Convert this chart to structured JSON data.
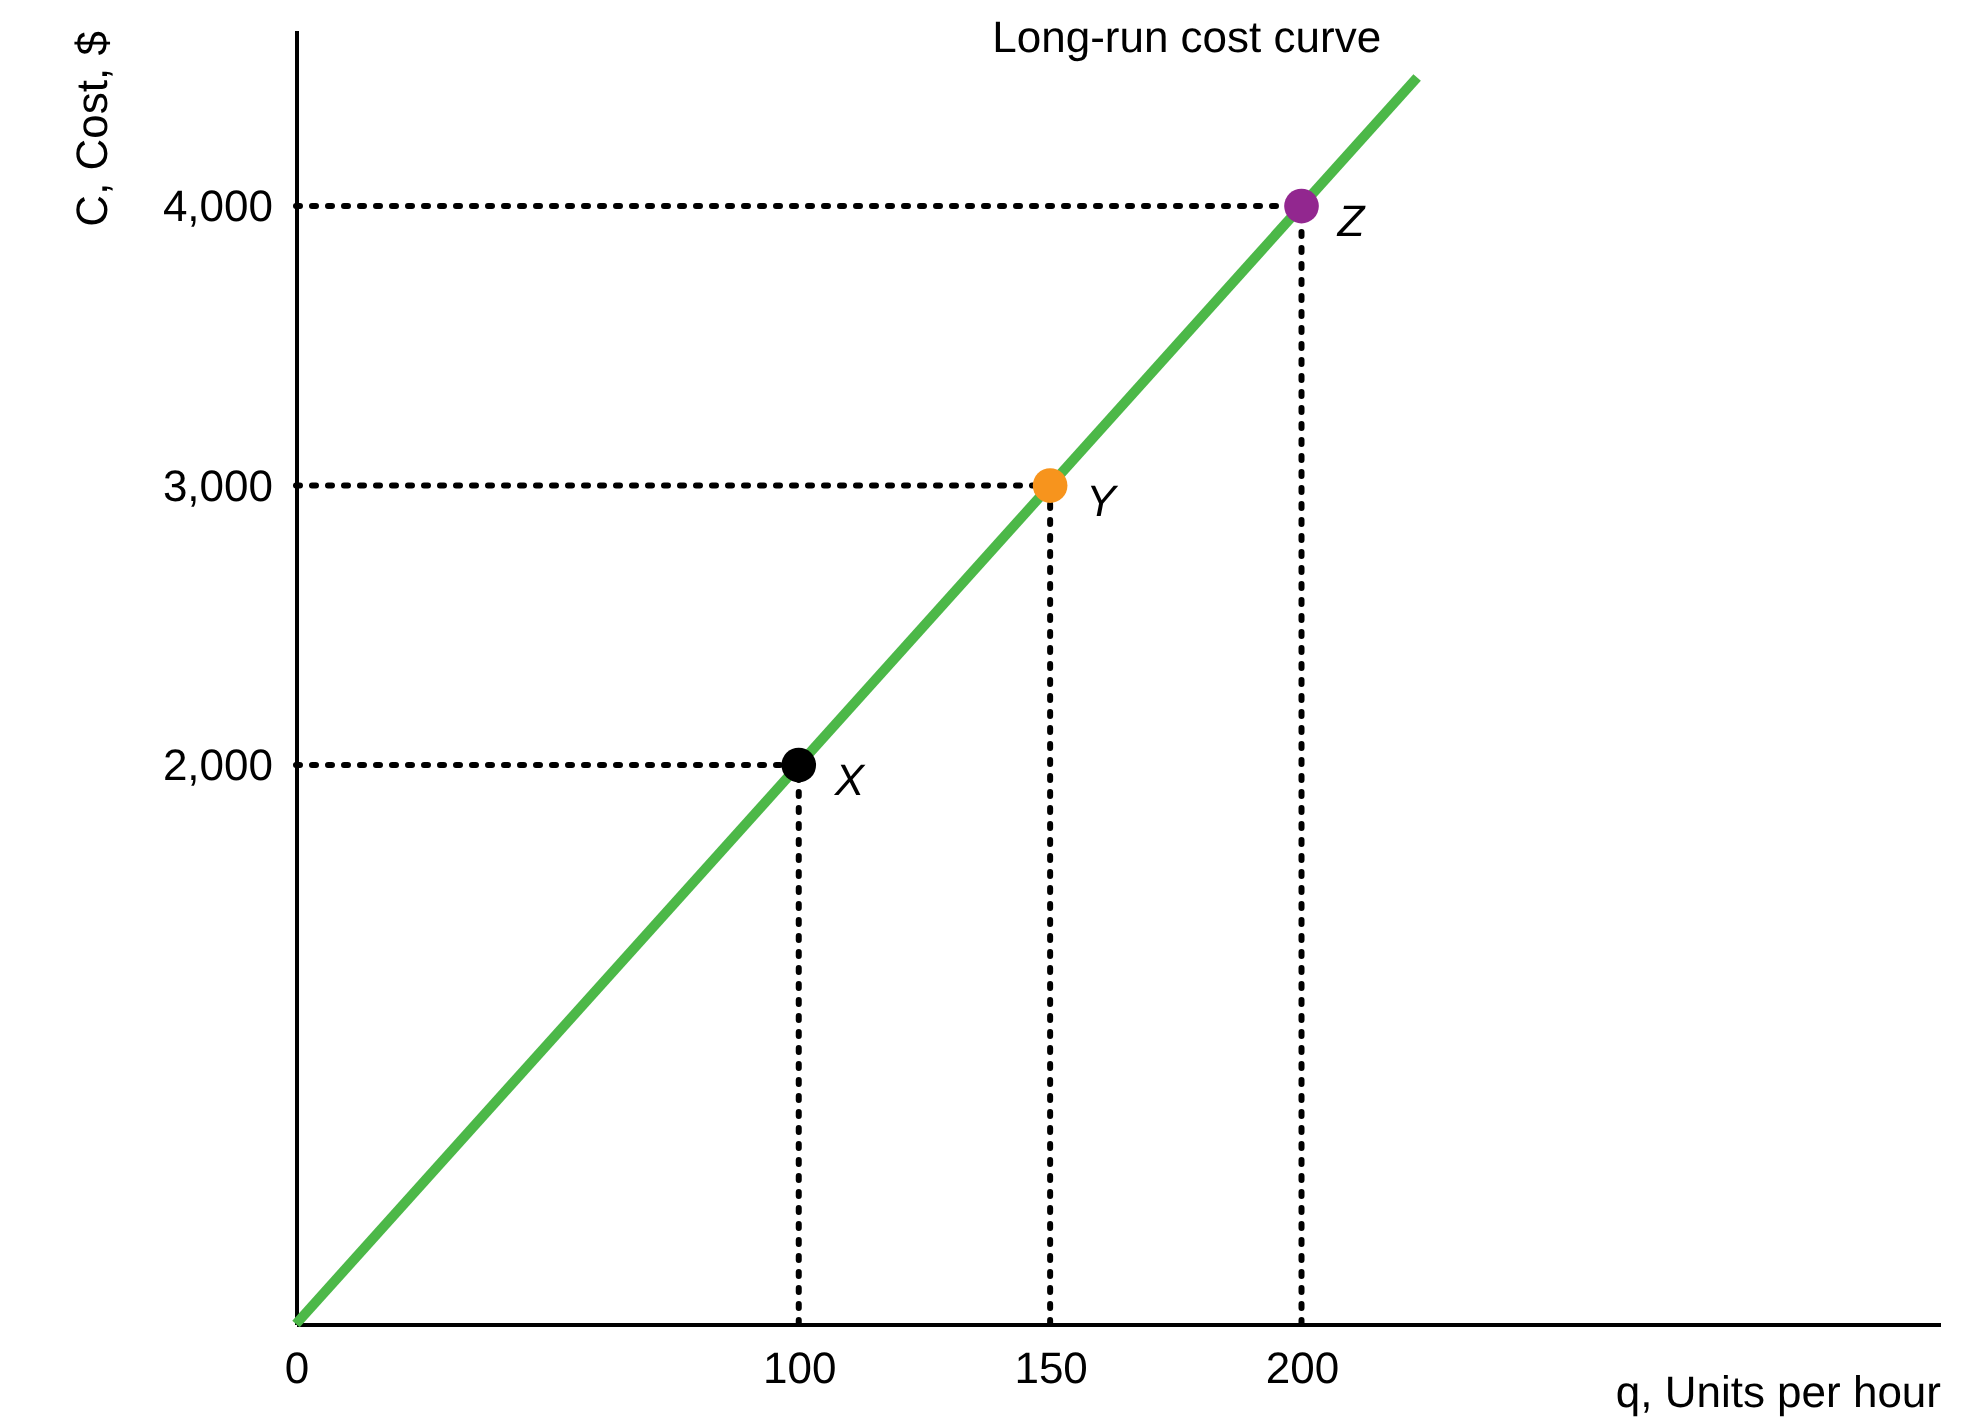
{
  "chart_data": {
    "type": "line",
    "xlabel": "q, Units per hour",
    "ylabel": "C, Cost, $",
    "xlim": [
      0,
      327
    ],
    "ylim": [
      0,
      4630
    ],
    "xticks": [
      0,
      100,
      150,
      200
    ],
    "yticks": [
      {
        "value": 2000,
        "label": "2,000"
      },
      {
        "value": 3000,
        "label": "3,000"
      },
      {
        "value": 4000,
        "label": "4,000"
      }
    ],
    "series": [
      {
        "name": "Long-run cost curve",
        "color": "#4cb848",
        "x": [
          0,
          223
        ],
        "values": [
          0,
          4460
        ]
      },
      {
        "name": "X",
        "type": "scatter",
        "color": "#000000",
        "x": [
          100
        ],
        "values": [
          2000
        ],
        "line_style": "dotted"
      },
      {
        "name": "Y",
        "type": "scatter",
        "color": "#f7941d",
        "x": [
          150
        ],
        "values": [
          3000
        ],
        "line_style": "dotted"
      },
      {
        "name": "Z",
        "type": "scatter",
        "color": "#92278f",
        "x": [
          200
        ],
        "values": [
          4000
        ],
        "line_style": "dotted"
      }
    ]
  }
}
